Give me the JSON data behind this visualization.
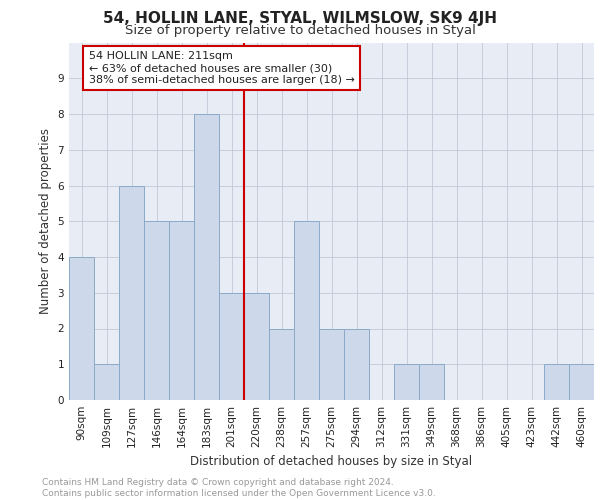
{
  "title": "54, HOLLIN LANE, STYAL, WILMSLOW, SK9 4JH",
  "subtitle": "Size of property relative to detached houses in Styal",
  "xlabel": "Distribution of detached houses by size in Styal",
  "ylabel": "Number of detached properties",
  "bar_labels": [
    "90sqm",
    "109sqm",
    "127sqm",
    "146sqm",
    "164sqm",
    "183sqm",
    "201sqm",
    "220sqm",
    "238sqm",
    "257sqm",
    "275sqm",
    "294sqm",
    "312sqm",
    "331sqm",
    "349sqm",
    "368sqm",
    "386sqm",
    "405sqm",
    "423sqm",
    "442sqm",
    "460sqm"
  ],
  "bar_values": [
    4,
    1,
    6,
    5,
    5,
    8,
    3,
    3,
    2,
    5,
    2,
    2,
    0,
    1,
    1,
    0,
    0,
    0,
    0,
    1,
    1
  ],
  "bar_color": "#cdd8ea",
  "bar_edgecolor": "#8aaac8",
  "property_line_x": 6.5,
  "property_line_color": "#cc0000",
  "annotation_box_text": "54 HOLLIN LANE: 211sqm\n← 63% of detached houses are smaller (30)\n38% of semi-detached houses are larger (18) →",
  "annotation_box_facecolor": "#ffffff",
  "annotation_box_edgecolor": "#cc0000",
  "ylim": [
    0,
    10
  ],
  "yticks": [
    0,
    1,
    2,
    3,
    4,
    5,
    6,
    7,
    8,
    9,
    10
  ],
  "grid_color": "#c0c8d8",
  "background_color": "#e8edf5",
  "footer_text": "Contains HM Land Registry data © Crown copyright and database right 2024.\nContains public sector information licensed under the Open Government Licence v3.0.",
  "title_fontsize": 11,
  "subtitle_fontsize": 9.5,
  "axis_label_fontsize": 8.5,
  "tick_fontsize": 7.5,
  "annotation_fontsize": 8,
  "footer_fontsize": 6.5
}
